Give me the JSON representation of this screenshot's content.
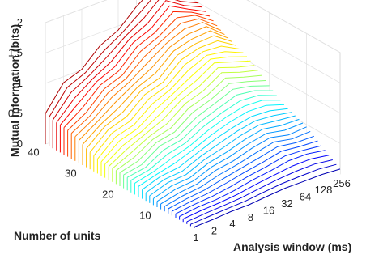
{
  "chart_data": {
    "type": "waterfall-3d",
    "title": "",
    "xlabel": "Analysis window (ms)",
    "ylabel": "Number of units",
    "zlabel": "Mutual information (bits)",
    "x_ticks": [
      "1",
      "2",
      "4",
      "8",
      "16",
      "32",
      "64",
      "128",
      "256"
    ],
    "y_ticks": [
      "10",
      "20",
      "30",
      "40"
    ],
    "z_ticks": [
      "0",
      "0.5",
      "1",
      "1.5",
      "2"
    ],
    "zlim": [
      0,
      2
    ],
    "ylim": [
      1,
      41
    ],
    "grid": true,
    "colormap": "jet (low MI = blue, high MI = red)",
    "series_note": "One curve per number of units (1 to 41); MI rises with window length and with unit count, peaking about 1.9 bits near 64-128 ms for ~40 units.",
    "series": [
      {
        "units": 41,
        "values": [
          0.55,
          0.85,
          1.05,
          1.25,
          1.45,
          1.7,
          1.9,
          1.75,
          1.5
        ]
      },
      {
        "units": 35,
        "values": [
          0.4,
          0.65,
          0.85,
          1.05,
          1.25,
          1.45,
          1.6,
          1.55,
          1.35
        ]
      },
      {
        "units": 30,
        "values": [
          0.3,
          0.55,
          0.7,
          0.9,
          1.05,
          1.25,
          1.4,
          1.35,
          1.2
        ]
      },
      {
        "units": 25,
        "values": [
          0.25,
          0.4,
          0.55,
          0.7,
          0.9,
          1.05,
          1.2,
          1.15,
          1.0
        ]
      },
      {
        "units": 20,
        "values": [
          0.2,
          0.3,
          0.45,
          0.55,
          0.7,
          0.85,
          0.95,
          0.9,
          0.8
        ]
      },
      {
        "units": 15,
        "values": [
          0.15,
          0.25,
          0.3,
          0.4,
          0.55,
          0.6,
          0.7,
          0.65,
          0.6
        ]
      },
      {
        "units": 10,
        "values": [
          0.1,
          0.15,
          0.2,
          0.3,
          0.35,
          0.45,
          0.5,
          0.45,
          0.45
        ]
      },
      {
        "units": 5,
        "values": [
          0.05,
          0.1,
          0.1,
          0.15,
          0.2,
          0.25,
          0.3,
          0.3,
          0.25
        ]
      },
      {
        "units": 1,
        "values": [
          0.02,
          0.03,
          0.05,
          0.05,
          0.08,
          0.1,
          0.1,
          0.1,
          0.08
        ]
      }
    ]
  }
}
